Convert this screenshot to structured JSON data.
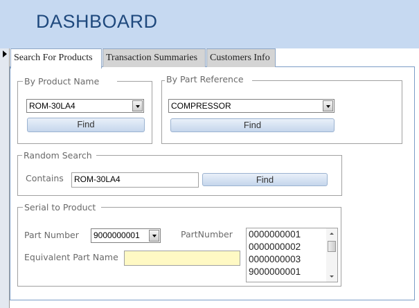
{
  "header": {
    "title": "DASHBOARD"
  },
  "tabs": [
    {
      "label": "Search For Products",
      "active": true
    },
    {
      "label": "Transaction Summaries",
      "active": false
    },
    {
      "label": "Customers Info",
      "active": false
    }
  ],
  "by_product_name": {
    "legend": "By Product Name",
    "value": "ROM-30LA4",
    "find_label": "Find"
  },
  "by_part_reference": {
    "legend": "By Part Reference",
    "value": "COMPRESSOR",
    "find_label": "Find"
  },
  "random_search": {
    "legend": "Random Search",
    "contains_label": "Contains",
    "value": "ROM-30LA4",
    "find_label": "Find"
  },
  "serial_to_product": {
    "legend": "Serial to Product",
    "part_number_label": "Part Number",
    "part_number_value": "9000000001",
    "list_label": "PartNumber",
    "list_items": [
      "0000000001",
      "0000000002",
      "0000000003",
      "9000000001"
    ],
    "equivalent_label": "Equivalent Part Name",
    "equivalent_value": ""
  },
  "colors": {
    "header_bg": "#c6d9f1",
    "title": "#1f497d",
    "highlight_field": "#fff9c4"
  }
}
